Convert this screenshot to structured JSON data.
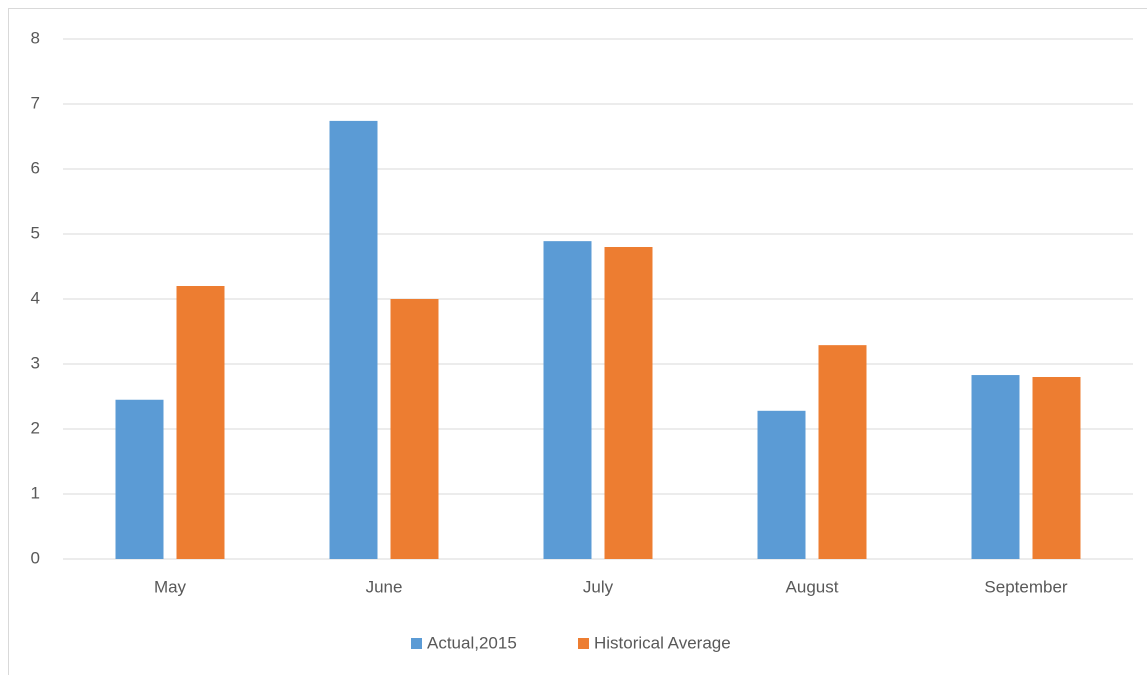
{
  "chart_data": {
    "type": "bar",
    "categories": [
      "May",
      "June",
      "July",
      "August",
      "September"
    ],
    "series": [
      {
        "name": "Actual,2015",
        "color": "#5b9bd5",
        "values": [
          2.45,
          6.74,
          4.89,
          2.28,
          2.83
        ]
      },
      {
        "name": "Historical Average",
        "color": "#ed7d31",
        "values": [
          4.2,
          4.0,
          4.8,
          3.29,
          2.8
        ]
      }
    ],
    "ylim": [
      0,
      8
    ],
    "yticks": [
      0,
      1,
      2,
      3,
      4,
      5,
      6,
      7,
      8
    ],
    "grid": true,
    "legend": "bottom"
  }
}
